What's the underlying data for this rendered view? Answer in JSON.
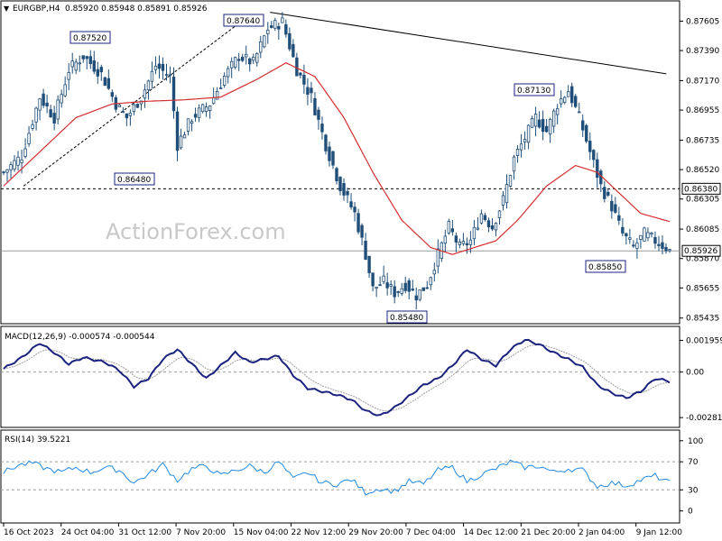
{
  "header": {
    "symbol": "EURGBP,H4",
    "ohlc": "0.85920 0.85948 0.85891 0.85926"
  },
  "watermark": "ActionForex.com",
  "colors": {
    "candle": "#1f4e79",
    "ma": "#d32f2f",
    "macd": "#1a237e",
    "signal": "#9e9e9e",
    "rsi": "#1e88e5",
    "trend": "#000000"
  },
  "chart_data": [
    {
      "type": "candlestick",
      "x_ticks": [
        "16 Oct 2023",
        "24 Oct 04:00",
        "31 Oct 12:00",
        "7 Nov 20:00",
        "15 Nov 04:00",
        "22 Nov 12:00",
        "29 Nov 20:00",
        "7 Dec 04:00",
        "14 Dec 12:00",
        "21 Dec 20:00",
        "2 Jan 04:00",
        "9 Jan 12:00"
      ],
      "y_ticks": [
        "0.87605",
        "0.87390",
        "0.87170",
        "0.86955",
        "0.86735",
        "0.86520",
        "0.86305",
        "0.86085",
        "0.85870",
        "0.85655",
        "0.85435"
      ],
      "ylim": [
        0.8542,
        0.8772
      ],
      "annotations": [
        {
          "text": "0.87520",
          "value": 0.8752
        },
        {
          "text": "0.87640",
          "value": 0.8764
        },
        {
          "text": "0.86480",
          "value": 0.8648
        },
        {
          "text": "0.85480",
          "value": 0.8548
        },
        {
          "text": "0.87130",
          "value": 0.8713
        },
        {
          "text": "0.85850",
          "value": 0.8585
        }
      ],
      "price_tags": [
        {
          "text": "0.86380",
          "value": 0.8638
        },
        {
          "text": "0.85926",
          "value": 0.85926
        }
      ],
      "resistance_level": 0.8638,
      "current_price": 0.85926,
      "close_anchors": [
        [
          0,
          0.865
        ],
        [
          5,
          0.8662
        ],
        [
          10,
          0.8705
        ],
        [
          14,
          0.869
        ],
        [
          18,
          0.8725
        ],
        [
          22,
          0.8735
        ],
        [
          27,
          0.8722
        ],
        [
          31,
          0.87
        ],
        [
          34,
          0.869
        ],
        [
          38,
          0.8705
        ],
        [
          42,
          0.8728
        ],
        [
          46,
          0.872
        ],
        [
          48,
          0.867
        ],
        [
          52,
          0.869
        ],
        [
          57,
          0.87
        ],
        [
          61,
          0.872
        ],
        [
          65,
          0.8735
        ],
        [
          69,
          0.873
        ],
        [
          73,
          0.8755
        ],
        [
          77,
          0.876
        ],
        [
          81,
          0.8725
        ],
        [
          85,
          0.8705
        ],
        [
          89,
          0.867
        ],
        [
          93,
          0.864
        ],
        [
          97,
          0.862
        ],
        [
          100,
          0.859
        ],
        [
          102,
          0.8565
        ],
        [
          105,
          0.857
        ],
        [
          108,
          0.8562
        ],
        [
          111,
          0.8568
        ],
        [
          114,
          0.856
        ],
        [
          117,
          0.8568
        ],
        [
          120,
          0.859
        ],
        [
          123,
          0.861
        ],
        [
          126,
          0.8595
        ],
        [
          129,
          0.86
        ],
        [
          132,
          0.862
        ],
        [
          135,
          0.861
        ],
        [
          138,
          0.863
        ],
        [
          141,
          0.866
        ],
        [
          144,
          0.8675
        ],
        [
          147,
          0.869
        ],
        [
          150,
          0.868
        ],
        [
          153,
          0.87
        ],
        [
          156,
          0.871
        ],
        [
          159,
          0.869
        ],
        [
          162,
          0.8665
        ],
        [
          165,
          0.864
        ],
        [
          168,
          0.8625
        ],
        [
          171,
          0.8605
        ],
        [
          174,
          0.8595
        ],
        [
          177,
          0.8605
        ],
        [
          180,
          0.86
        ],
        [
          183,
          0.8595
        ],
        [
          184,
          0.85926
        ]
      ],
      "ma_anchors": [
        [
          0,
          0.864
        ],
        [
          10,
          0.8665
        ],
        [
          20,
          0.869
        ],
        [
          30,
          0.87
        ],
        [
          40,
          0.8702
        ],
        [
          50,
          0.8703
        ],
        [
          60,
          0.8705
        ],
        [
          70,
          0.8718
        ],
        [
          78,
          0.873
        ],
        [
          86,
          0.872
        ],
        [
          94,
          0.869
        ],
        [
          102,
          0.865
        ],
        [
          110,
          0.8615
        ],
        [
          118,
          0.8595
        ],
        [
          124,
          0.859
        ],
        [
          130,
          0.8595
        ],
        [
          136,
          0.86
        ],
        [
          142,
          0.8615
        ],
        [
          150,
          0.864
        ],
        [
          158,
          0.8655
        ],
        [
          164,
          0.865
        ],
        [
          170,
          0.8635
        ],
        [
          176,
          0.862
        ],
        [
          184,
          0.8614
        ]
      ],
      "trend_lines": [
        {
          "name": "upper-trendline",
          "points": [
            [
              0.4,
              0.8767
            ],
            [
              0.995,
              0.8722
            ]
          ]
        },
        {
          "name": "lower-channel",
          "points": [
            [
              0.03,
              0.864
            ],
            [
              0.37,
              0.8765
            ]
          ]
        }
      ]
    },
    {
      "type": "line",
      "label": "MACD(12,26,9) -0.000574 -0.000544",
      "y_ticks": [
        "0.001959",
        "0.00",
        "-0.002818"
      ],
      "ylim": [
        -0.0032,
        0.0026
      ],
      "macd_anchors": [
        [
          0,
          0.0002
        ],
        [
          5,
          0.0009
        ],
        [
          10,
          0.0018
        ],
        [
          14,
          0.0012
        ],
        [
          18,
          0.0005
        ],
        [
          22,
          0.0009
        ],
        [
          28,
          0.0006
        ],
        [
          32,
          0.0001
        ],
        [
          36,
          -0.0009
        ],
        [
          40,
          -0.0004
        ],
        [
          44,
          0.0008
        ],
        [
          48,
          0.0014
        ],
        [
          52,
          0.0005
        ],
        [
          56,
          -0.0004
        ],
        [
          60,
          0.0004
        ],
        [
          64,
          0.0012
        ],
        [
          68,
          0.0006
        ],
        [
          72,
          0.0008
        ],
        [
          76,
          0.001
        ],
        [
          80,
          -0.0002
        ],
        [
          84,
          -0.001
        ],
        [
          88,
          -0.0012
        ],
        [
          92,
          -0.0014
        ],
        [
          96,
          -0.0017
        ],
        [
          100,
          -0.0024
        ],
        [
          104,
          -0.0027
        ],
        [
          108,
          -0.0022
        ],
        [
          112,
          -0.0015
        ],
        [
          116,
          -0.0008
        ],
        [
          120,
          -0.0004
        ],
        [
          124,
          0.0004
        ],
        [
          128,
          0.0014
        ],
        [
          132,
          0.0008
        ],
        [
          136,
          0.0004
        ],
        [
          140,
          0.0014
        ],
        [
          144,
          0.002
        ],
        [
          148,
          0.0017
        ],
        [
          152,
          0.0012
        ],
        [
          156,
          0.0008
        ],
        [
          160,
          0.0003
        ],
        [
          164,
          -0.0008
        ],
        [
          168,
          -0.0013
        ],
        [
          172,
          -0.0016
        ],
        [
          176,
          -0.0012
        ],
        [
          180,
          -0.0004
        ],
        [
          184,
          -0.000574
        ]
      ]
    },
    {
      "type": "line",
      "label": "RSI(14) 39.5221",
      "y_ticks": [
        "100",
        "70",
        "30",
        "0"
      ],
      "ylim": [
        -12,
        110
      ],
      "levels": [
        70,
        30
      ],
      "rsi_anchors": [
        [
          0,
          55
        ],
        [
          4,
          65
        ],
        [
          8,
          68
        ],
        [
          12,
          60
        ],
        [
          16,
          55
        ],
        [
          20,
          62
        ],
        [
          24,
          55
        ],
        [
          28,
          62
        ],
        [
          32,
          58
        ],
        [
          36,
          40
        ],
        [
          40,
          52
        ],
        [
          44,
          66
        ],
        [
          48,
          44
        ],
        [
          52,
          60
        ],
        [
          56,
          64
        ],
        [
          60,
          50
        ],
        [
          64,
          58
        ],
        [
          68,
          64
        ],
        [
          72,
          55
        ],
        [
          76,
          70
        ],
        [
          80,
          45
        ],
        [
          84,
          55
        ],
        [
          88,
          40
        ],
        [
          92,
          38
        ],
        [
          96,
          45
        ],
        [
          100,
          26
        ],
        [
          104,
          32
        ],
        [
          108,
          28
        ],
        [
          112,
          42
        ],
        [
          116,
          38
        ],
        [
          120,
          58
        ],
        [
          124,
          62
        ],
        [
          128,
          42
        ],
        [
          132,
          52
        ],
        [
          136,
          60
        ],
        [
          140,
          70
        ],
        [
          144,
          62
        ],
        [
          148,
          64
        ],
        [
          152,
          55
        ],
        [
          156,
          60
        ],
        [
          160,
          58
        ],
        [
          164,
          35
        ],
        [
          168,
          40
        ],
        [
          172,
          36
        ],
        [
          176,
          44
        ],
        [
          180,
          50
        ],
        [
          184,
          39.5
        ]
      ]
    }
  ]
}
